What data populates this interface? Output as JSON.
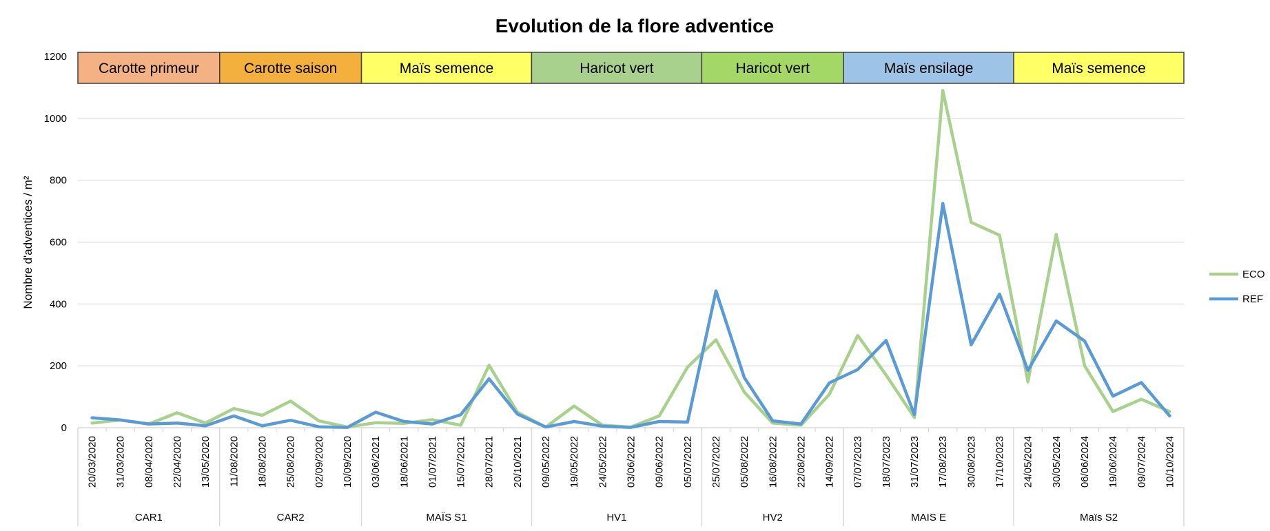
{
  "chart_data": {
    "type": "line",
    "title": "Evolution de la flore adventice",
    "ylabel": "Nombre d'adventices / m²",
    "xlabel": "",
    "ylim": [
      0,
      1200
    ],
    "yticks": [
      0,
      200,
      400,
      600,
      800,
      1000,
      1200
    ],
    "grid": true,
    "legend_position": "right",
    "categories": [
      "20/03/2020",
      "31/03/2020",
      "08/04/2020",
      "22/04/2020",
      "13/05/2020",
      "11/08/2020",
      "18/08/2020",
      "25/08/2020",
      "02/09/2020",
      "10/09/2020",
      "03/06/2021",
      "18/06/2021",
      "01/07/2021",
      "15/07/2021",
      "28/07/2021",
      "20/10/2021",
      "09/05/2022",
      "19/05/2022",
      "24/05/2022",
      "03/06/2022",
      "09/06/2022",
      "05/07/2022",
      "25/07/2022",
      "05/08/2022",
      "16/08/2022",
      "22/08/2022",
      "14/09/2022",
      "07/07/2023",
      "18/07/2023",
      "31/07/2023",
      "17/08/2023",
      "30/08/2023",
      "17/10/2023",
      "24/05/2024",
      "30/05/2024",
      "06/06/2024",
      "19/06/2024",
      "09/07/2024",
      "10/10/2024"
    ],
    "groups": [
      {
        "label": "CAR1",
        "count": 5
      },
      {
        "label": "CAR2",
        "count": 5
      },
      {
        "label": "MAÏS S1",
        "count": 6
      },
      {
        "label": "HV1",
        "count": 6
      },
      {
        "label": "HV2",
        "count": 5
      },
      {
        "label": "MAIS E",
        "count": 6
      },
      {
        "label": "Maïs S2",
        "count": 6
      }
    ],
    "crop_bands": [
      {
        "label": "Carotte primeur",
        "color": "#f4b183",
        "span": 5
      },
      {
        "label": "Carotte saison",
        "color": "#f4b03c",
        "span": 5
      },
      {
        "label": "Maïs semence",
        "color": "#ffff66",
        "span": 6
      },
      {
        "label": "Haricot vert",
        "color": "#a9d18e",
        "span": 6
      },
      {
        "label": "Haricot vert",
        "color": "#a3d867",
        "span": 5
      },
      {
        "label": "Maïs ensilage",
        "color": "#9dc3e6",
        "span": 6
      },
      {
        "label": "Maïs semence",
        "color": "#ffff66",
        "span": 6
      }
    ],
    "series": [
      {
        "name": "ECO",
        "color": "#a9d18e",
        "values": [
          15,
          25,
          12,
          48,
          15,
          62,
          40,
          86,
          22,
          2,
          16,
          14,
          26,
          8,
          202,
          50,
          2,
          70,
          8,
          2,
          38,
          196,
          284,
          115,
          15,
          8,
          108,
          298,
          170,
          33,
          1090,
          664,
          622,
          148,
          625,
          200,
          52,
          92,
          52
        ]
      },
      {
        "name": "REF",
        "color": "#5b9bd5",
        "values": [
          32,
          25,
          12,
          15,
          6,
          38,
          6,
          24,
          3,
          1,
          50,
          20,
          12,
          42,
          158,
          44,
          2,
          20,
          5,
          1,
          20,
          18,
          442,
          162,
          22,
          12,
          145,
          188,
          282,
          42,
          725,
          268,
          432,
          185,
          345,
          280,
          102,
          146,
          38
        ]
      }
    ]
  }
}
